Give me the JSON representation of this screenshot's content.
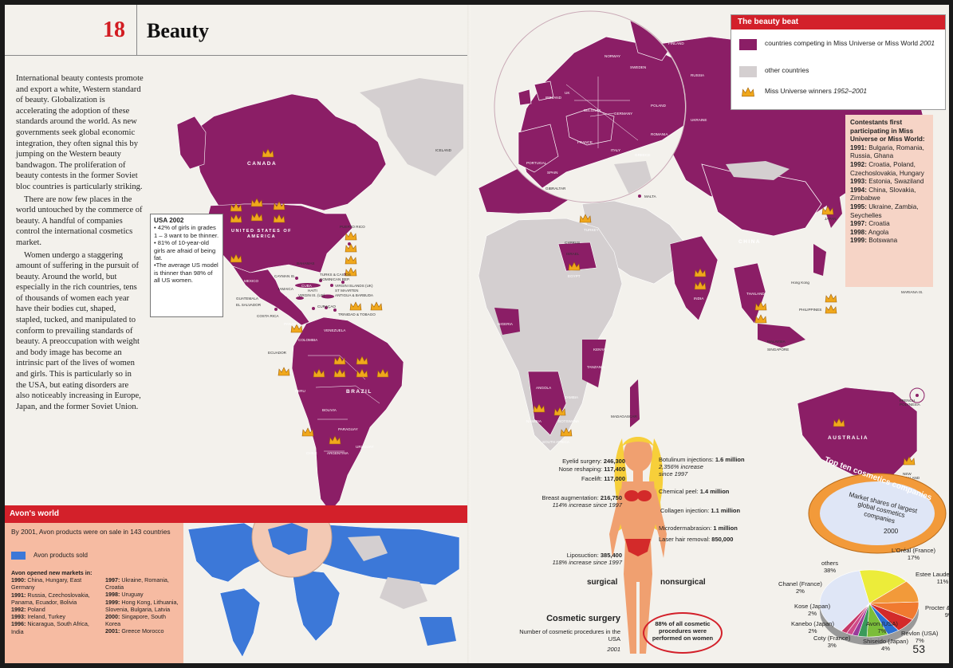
{
  "left": {
    "chapter_number": "18",
    "chapter_title": "Beauty",
    "intro_paragraphs": [
      "International beauty contests promote and export a white, Western standard of beauty. Globalization is accelerating the adoption of these standards around the world. As new governments seek global economic integration, they often signal this by jumping on the Western beauty bandwagon. The proliferation of beauty contests in the former Soviet bloc countries is particularly striking.",
      "There are now few places in the world untouched by the commerce of beauty. A handful of companies control the international cosmetics market.",
      "Women undergo a staggering amount of suffering in the pursuit of beauty. Around the world, but especially in the rich countries, tens of thousands of women each year have their bodies cut, shaped, stapled, tucked, and manipulated to conform to prevailing standards of beauty. A preoccupation with weight and body image has become an intrinsic part of the lives of women and girls. This is particularly so in the USA, but eating disorders are also noticeably increasing in Europe, Japan, and the former Soviet Union."
    ],
    "usa_box": {
      "title": "USA 2002",
      "items": [
        "• 42% of girls in grades 1 – 3 want to be thinner.",
        "• 81% of 10-year-old girls are afraid of being fat.",
        "•The average US model is thinner than 98% of all US women."
      ]
    },
    "map_labels": {
      "canada": "CANADA",
      "usa": "UNITED STATES OF AMERICA",
      "brazil": "BRAZIL",
      "iceland": "ICELAND",
      "puerto_rico": "PUERTO RICO",
      "bahamas": "BAHAMAS",
      "turks": "TURKS & CAICOS",
      "dominican": "DOMINICAN REP.",
      "cayman": "CAYMAN IS.",
      "cuba": "CUBA",
      "jamaica": "JAMAICA",
      "haiti": "HAITI",
      "virgin": "VIRGIN IS. (US)",
      "virgin_uk": "VIRGIN ISLANDS (UK)",
      "st_maarten": "ST MAARTEN",
      "antigua": "ANTIGUA & BARBUDA",
      "curacao": "CURAÇAO",
      "trinidad": "TRINIDAD & TOBAGO",
      "guatemala": "GUATEMALA",
      "el_salvador": "EL SALVADOR",
      "costa_rica": "COSTA RICA",
      "ecuador": "ECUADOR",
      "peru": "PERU",
      "bolivia": "BOLIVIA",
      "chile": "CHILE",
      "argentina": "ARGENTINA",
      "panama": "PANAMA",
      "venezuela": "VENEZUELA",
      "colombia": "COLOMBIA",
      "mexico": "MEXICO",
      "paraguay": "PARAGUAY",
      "uruguay": "URUGUAY"
    },
    "avon": {
      "title": "Avon's world",
      "summary": "By 2001, Avon products were on sale in 143 countries",
      "legend": "Avon products sold",
      "markets_heading": "Avon opened new markets in:",
      "markets_left": [
        {
          "year": "1990:",
          "text": "China, Hungary, East Germany"
        },
        {
          "year": "1991:",
          "text": "Russia, Czechoslovakia, Panama, Ecuador, Bolivia"
        },
        {
          "year": "1992:",
          "text": "Poland"
        },
        {
          "year": "1993:",
          "text": "Ireland, Turkey"
        },
        {
          "year": "1996:",
          "text": "Nicaragua, South Africa, India"
        }
      ],
      "markets_right": [
        {
          "year": "1997:",
          "text": "Ukraine, Romania, Croatia"
        },
        {
          "year": "1998:",
          "text": "Uruguay"
        },
        {
          "year": "1999:",
          "text": "Hong Kong, Lithuania, Slovenia, Bulgaria, Latvia"
        },
        {
          "year": "2000:",
          "text": "Singapore, South Korea"
        },
        {
          "year": "2001:",
          "text": "Greece Morocco"
        }
      ],
      "avon_color": "#3c78d8"
    }
  },
  "right": {
    "beat": {
      "title": "The beauty beat",
      "competing": "countries competing in Miss Universe or Miss World",
      "competing_year": "2001",
      "other": "other countries",
      "winners": "Miss Universe winners",
      "winners_years": "1952–2001",
      "competing_color": "#8b1e66",
      "other_color": "#d4cfd0",
      "crown_color": "#f0a81c"
    },
    "first": {
      "title": "Contestants first participating in Miss Universe or Miss World:",
      "rows": [
        {
          "year": "1991:",
          "text": "Bulgaria, Romania, Russia, Ghana"
        },
        {
          "year": "1992:",
          "text": "Croatia, Poland, Czechoslovakia, Hungary"
        },
        {
          "year": "1993:",
          "text": "Estonia, Swaziland"
        },
        {
          "year": "1994:",
          "text": "China, Slovakia, Zimbabwe"
        },
        {
          "year": "1995:",
          "text": "Ukraine, Zambia, Seychelles"
        },
        {
          "year": "1997:",
          "text": "Croatia"
        },
        {
          "year": "1998:",
          "text": "Angola"
        },
        {
          "year": "1999:",
          "text": "Botswana"
        }
      ]
    },
    "map_labels": {
      "china": "CHINA",
      "india": "INDIA",
      "australia": "AUSTRALIA",
      "japan": "JAPAN",
      "egypt": "EGYPT",
      "nigeria": "NIGERIA",
      "malaysia": "MALAYSIA",
      "singapore": "SINGAPORE",
      "philippines": "PHILIPPINES",
      "hong_kong": "Hong Kong",
      "mariana": "MARIANA IS.",
      "malta": "MALTA",
      "cyprus": "CYPRUS",
      "portugal": "PORTUGAL",
      "spain": "SPAIN",
      "gibraltar": "GIBRALTAR",
      "france": "FRANCE",
      "poland": "POLAND",
      "germany": "GERMANY",
      "ukraine": "UKRAINE",
      "sweden": "SWEDEN",
      "finland": "FINLAND",
      "norway": "NORWAY",
      "russia": "RUSSIA",
      "belgium": "BELGIUM",
      "ireland": "IRELAND",
      "uk": "UK",
      "turkey": "TURKEY",
      "israel": "ISRAEL",
      "angola": "ANGOLA",
      "south_africa": "SOUTH AFRICA",
      "namibia": "NAMIBIA",
      "botswana": "BOTSWANA",
      "kenya": "KENYA",
      "tanzania": "TANZANIA",
      "zambia": "ZAMBIA",
      "madagascar": "MADAGASCAR",
      "french_polynesia": "FRENCH POLYNESIA",
      "new_zealand": "NEW ZEALAND",
      "greece": "GREECE",
      "romania": "ROMANIA",
      "italy": "ITALY",
      "thailand": "THAILAND"
    },
    "surgery": {
      "title": "Cosmetic surgery",
      "subtitle": "Number of cosmetic procedures in the USA",
      "year": "2001",
      "surgical": "surgical",
      "nonsurgical": "nonsurgical",
      "left_items": [
        {
          "name": "Eyelid surgery:",
          "value": "246,300",
          "note": ""
        },
        {
          "name": "Nose reshaping:",
          "value": "117,400",
          "note": ""
        },
        {
          "name": "Facelift:",
          "value": "117,000",
          "note": ""
        },
        {
          "name": "Breast augmentation:",
          "value": "216,750",
          "note": "114% increase since 1997"
        },
        {
          "name": "Liposuction:",
          "value": "385,400",
          "note": "118% increase since 1997"
        }
      ],
      "right_items": [
        {
          "name": "Botulinum injections:",
          "value": "1.6 million",
          "note1": "2,356% increase",
          "note2": "since 1997"
        },
        {
          "name": "Chemical peel:",
          "value": "1.4 million",
          "note1": "",
          "note2": ""
        },
        {
          "name": "Collagen injection:",
          "value": "1.1 million",
          "note1": "",
          "note2": ""
        },
        {
          "name": "Microdermabrasion:",
          "value": "1 million",
          "note1": "",
          "note2": ""
        },
        {
          "name": "Laser hair removal:",
          "value": "850,000",
          "note1": "",
          "note2": ""
        }
      ],
      "women_note": "88% of all cosmetic procedures were performed on women"
    },
    "page_number": "53"
  },
  "chart_data": {
    "type": "pie",
    "title": "Top ten cosmetics companies",
    "subtitle": "Market shares of largest global cosmetics companies",
    "year": "2000",
    "slices": [
      {
        "label": "L'Oréal (France)",
        "value": 17,
        "color": "#ecec3a"
      },
      {
        "label": "Estee Lauder (USA)",
        "value": 11,
        "color": "#f29a3a"
      },
      {
        "label": "Procter & Gamble",
        "value": 9,
        "color": "#f07a30"
      },
      {
        "label": "Revlon (USA)",
        "value": 7,
        "color": "#d32a2a"
      },
      {
        "label": "Shiseido (Japan)",
        "value": 4,
        "color": "#2a6ed3"
      },
      {
        "label": "Avon (USA)",
        "value": 7,
        "color": "#7bbd3a"
      },
      {
        "label": "Coty (France)",
        "value": 3,
        "color": "#3a9a5a"
      },
      {
        "label": "Kanebo (Japan)",
        "value": 2,
        "color": "#9a3a9a"
      },
      {
        "label": "Kose (Japan)",
        "value": 2,
        "color": "#d04a8a"
      },
      {
        "label": "Chanel (France)",
        "value": 2,
        "color": "#c73a6a"
      },
      {
        "label": "others",
        "value": 38,
        "color": "#dfe6f6"
      }
    ],
    "value_suffix": "%"
  }
}
